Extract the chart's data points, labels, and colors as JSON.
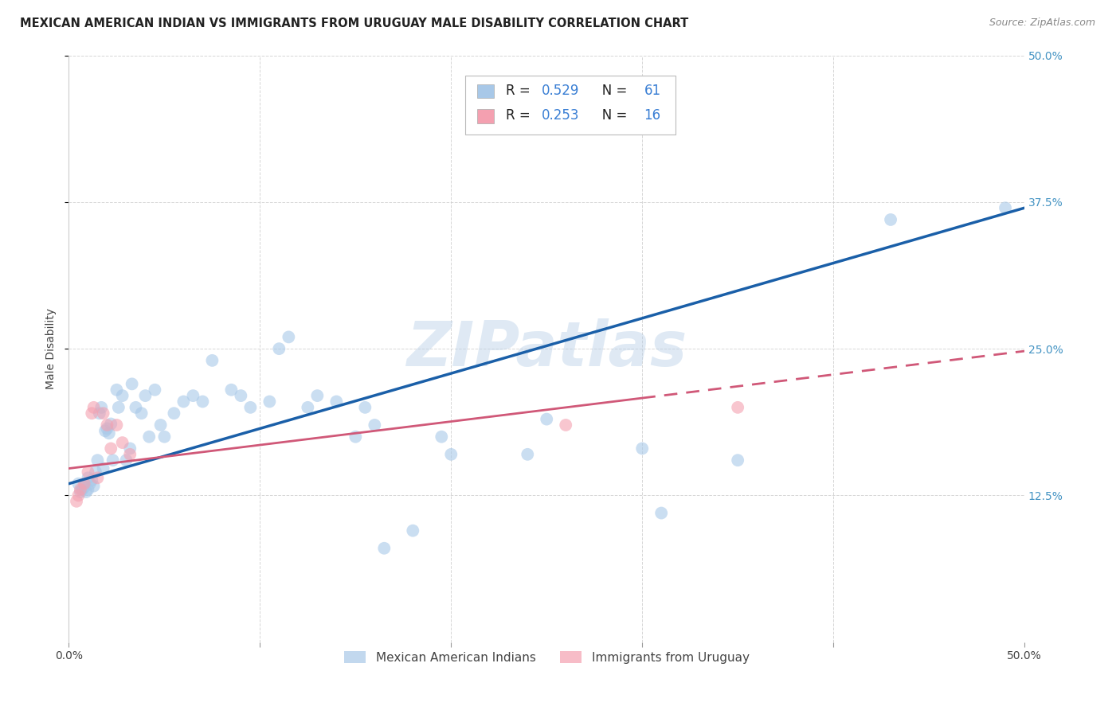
{
  "title": "MEXICAN AMERICAN INDIAN VS IMMIGRANTS FROM URUGUAY MALE DISABILITY CORRELATION CHART",
  "source": "Source: ZipAtlas.com",
  "ylabel": "Male Disability",
  "xlim": [
    0.0,
    0.5
  ],
  "ylim": [
    0.0,
    0.5
  ],
  "xticks": [
    0.0,
    0.1,
    0.2,
    0.3,
    0.4,
    0.5
  ],
  "yticks": [
    0.125,
    0.25,
    0.375,
    0.5
  ],
  "xticklabels": [
    "0.0%",
    "",
    "",
    "",
    "",
    "50.0%"
  ],
  "yticklabels": [
    "12.5%",
    "25.0%",
    "37.5%",
    "50.0%"
  ],
  "watermark": "ZIPatlas",
  "r1": "0.529",
  "n1": "61",
  "r2": "0.253",
  "n2": "16",
  "series1_label": "Mexican American Indians",
  "series2_label": "Immigrants from Uruguay",
  "series1_color": "#a8c8e8",
  "series2_color": "#f4a0b0",
  "line1_color": "#1a5fa8",
  "line2_color": "#d05878",
  "background_color": "#ffffff",
  "grid_color": "#cccccc",
  "title_fontsize": 10.5,
  "axis_label_fontsize": 10,
  "tick_fontsize": 10,
  "legend_fontsize": 11,
  "right_tick_color": "#4393c3",
  "blue_text_color": "#3a7fd4",
  "blue_dots_x": [
    0.005,
    0.006,
    0.007,
    0.008,
    0.009,
    0.01,
    0.01,
    0.011,
    0.012,
    0.013,
    0.014,
    0.015,
    0.016,
    0.017,
    0.018,
    0.019,
    0.02,
    0.021,
    0.022,
    0.023,
    0.025,
    0.026,
    0.028,
    0.03,
    0.032,
    0.033,
    0.035,
    0.038,
    0.04,
    0.042,
    0.045,
    0.048,
    0.05,
    0.055,
    0.06,
    0.065,
    0.07,
    0.075,
    0.085,
    0.09,
    0.095,
    0.105,
    0.11,
    0.115,
    0.125,
    0.13,
    0.14,
    0.15,
    0.155,
    0.16,
    0.165,
    0.18,
    0.195,
    0.2,
    0.24,
    0.25,
    0.3,
    0.31,
    0.35,
    0.43,
    0.49
  ],
  "blue_dots_y": [
    0.135,
    0.128,
    0.13,
    0.132,
    0.128,
    0.13,
    0.14,
    0.135,
    0.138,
    0.133,
    0.145,
    0.155,
    0.195,
    0.2,
    0.148,
    0.18,
    0.182,
    0.178,
    0.186,
    0.155,
    0.215,
    0.2,
    0.21,
    0.155,
    0.165,
    0.22,
    0.2,
    0.195,
    0.21,
    0.175,
    0.215,
    0.185,
    0.175,
    0.195,
    0.205,
    0.21,
    0.205,
    0.24,
    0.215,
    0.21,
    0.2,
    0.205,
    0.25,
    0.26,
    0.2,
    0.21,
    0.205,
    0.175,
    0.2,
    0.185,
    0.08,
    0.095,
    0.175,
    0.16,
    0.16,
    0.19,
    0.165,
    0.11,
    0.155,
    0.36,
    0.37
  ],
  "pink_dots_x": [
    0.004,
    0.005,
    0.006,
    0.008,
    0.01,
    0.012,
    0.013,
    0.015,
    0.018,
    0.02,
    0.022,
    0.025,
    0.028,
    0.032,
    0.26,
    0.35
  ],
  "pink_dots_y": [
    0.12,
    0.125,
    0.13,
    0.135,
    0.145,
    0.195,
    0.2,
    0.14,
    0.195,
    0.185,
    0.165,
    0.185,
    0.17,
    0.16,
    0.185,
    0.2
  ],
  "line1_x": [
    0.0,
    0.5
  ],
  "line1_y": [
    0.135,
    0.37
  ],
  "line2_x": [
    0.0,
    0.5
  ],
  "line2_y": [
    0.148,
    0.248
  ]
}
